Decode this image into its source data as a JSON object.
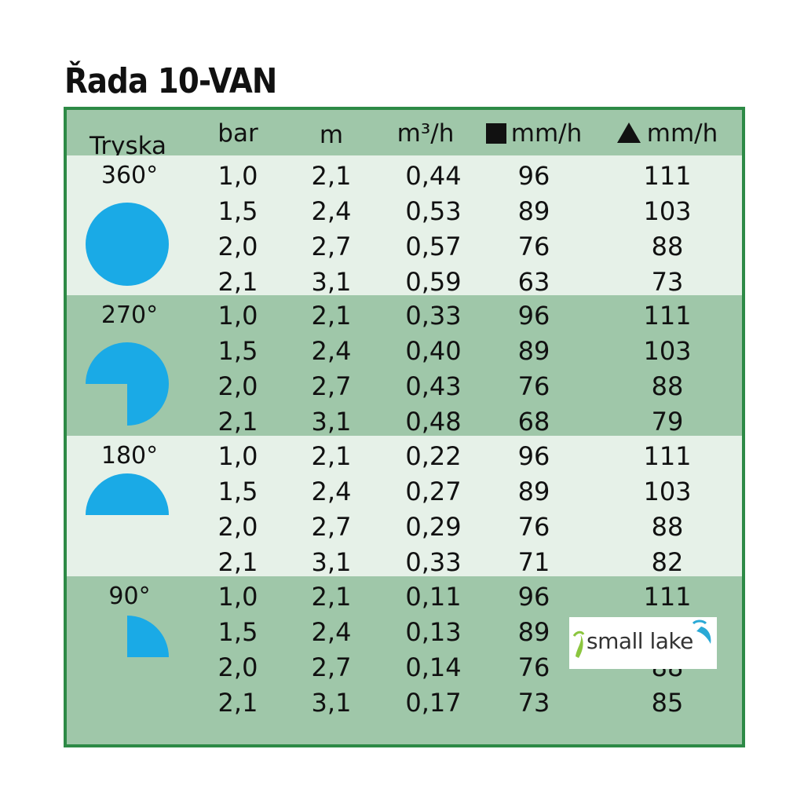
{
  "title": "Řada 10-VAN",
  "headers": {
    "nozzle": "Tryska",
    "bar": "bar",
    "m": "m",
    "flow": "m³/h",
    "square_rate": "mm/h",
    "triangle_rate": "mm/h"
  },
  "groups": [
    {
      "angle": "360°",
      "shape": "full-circle",
      "rows": [
        {
          "bar": "1,0",
          "m": "2,1",
          "flow": "0,44",
          "sq": "96",
          "tri": "111"
        },
        {
          "bar": "1,5",
          "m": "2,4",
          "flow": "0,53",
          "sq": "89",
          "tri": "103"
        },
        {
          "bar": "2,0",
          "m": "2,7",
          "flow": "0,57",
          "sq": "76",
          "tri": "88"
        },
        {
          "bar": "2,1",
          "m": "3,1",
          "flow": "0,59",
          "sq": "63",
          "tri": "73"
        }
      ]
    },
    {
      "angle": "270°",
      "shape": "three-quarter-circle",
      "rows": [
        {
          "bar": "1,0",
          "m": "2,1",
          "flow": "0,33",
          "sq": "96",
          "tri": "111"
        },
        {
          "bar": "1,5",
          "m": "2,4",
          "flow": "0,40",
          "sq": "89",
          "tri": "103"
        },
        {
          "bar": "2,0",
          "m": "2,7",
          "flow": "0,43",
          "sq": "76",
          "tri": "88"
        },
        {
          "bar": "2,1",
          "m": "3,1",
          "flow": "0,48",
          "sq": "68",
          "tri": "79"
        }
      ]
    },
    {
      "angle": "180°",
      "shape": "half-circle",
      "rows": [
        {
          "bar": "1,0",
          "m": "2,1",
          "flow": "0,22",
          "sq": "96",
          "tri": "111"
        },
        {
          "bar": "1,5",
          "m": "2,4",
          "flow": "0,27",
          "sq": "89",
          "tri": "103"
        },
        {
          "bar": "2,0",
          "m": "2,7",
          "flow": "0,29",
          "sq": "76",
          "tri": "88"
        },
        {
          "bar": "2,1",
          "m": "3,1",
          "flow": "0,33",
          "sq": "71",
          "tri": "82"
        }
      ]
    },
    {
      "angle": "90°",
      "shape": "quarter-circle",
      "rows": [
        {
          "bar": "1,0",
          "m": "2,1",
          "flow": "0,11",
          "sq": "96",
          "tri": "111"
        },
        {
          "bar": "1,5",
          "m": "2,4",
          "flow": "0,13",
          "sq": "89",
          "tri": ""
        },
        {
          "bar": "2,0",
          "m": "2,7",
          "flow": "0,14",
          "sq": "76",
          "tri": "88"
        },
        {
          "bar": "2,1",
          "m": "3,1",
          "flow": "0,17",
          "sq": "73",
          "tri": "85"
        }
      ]
    }
  ],
  "watermark": {
    "text": "small lake"
  },
  "colors": {
    "border": "#2d8a46",
    "band_dark": "#9fc7a9",
    "band_light": "#e6f1e8",
    "shape_fill": "#1aaae6"
  }
}
